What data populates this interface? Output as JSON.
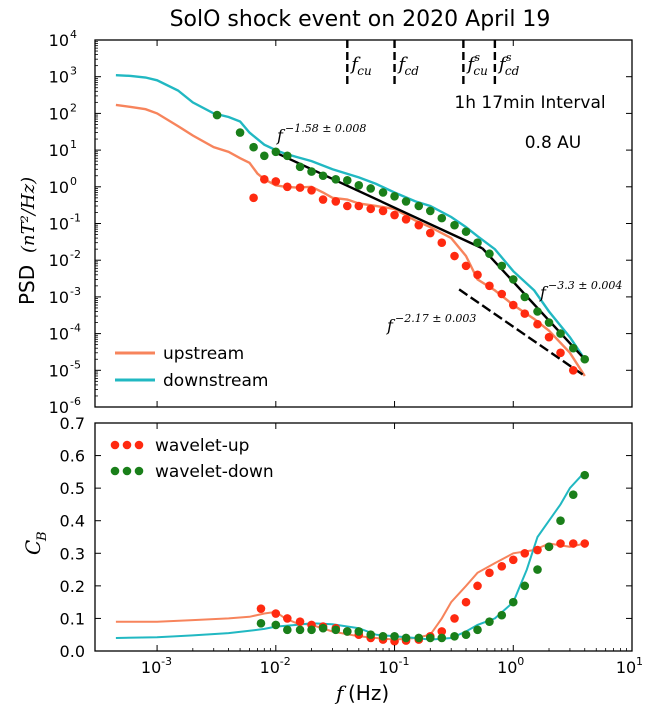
{
  "chart_data": [
    {
      "type": "line",
      "title": "SolO shock event on 2020 April 19",
      "ylabel_text": "PSD",
      "ylabel_math": "(nT²/Hz)",
      "x_scale": "log",
      "xlim": [
        0.0003,
        10
      ],
      "y_scale": "log",
      "ylim": [
        1e-06,
        10000.0
      ],
      "ytick_exponents": [
        "-6",
        "-5",
        "-4",
        "-3",
        "-2",
        "-1",
        "0",
        "1",
        "2",
        "3",
        "4"
      ],
      "annotations": {
        "interval": "1h 17min Interval",
        "distance": "0.8 AU",
        "freq_markers": [
          {
            "label": "fcu",
            "base": "f",
            "sub": "cu",
            "sup": "",
            "x": 0.04
          },
          {
            "label": "fcd",
            "base": "f",
            "sub": "cd",
            "sup": "",
            "x": 0.1
          },
          {
            "label": "fscu",
            "base": "f",
            "sub": "cu",
            "sup": "s",
            "x": 0.38
          },
          {
            "label": "fscd",
            "base": "f",
            "sub": "cd",
            "sup": "s",
            "x": 0.7
          }
        ],
        "fits": [
          {
            "label": "f^(-1.58±0.008)",
            "exp": "−1.58 ± 0.008",
            "x": [
              0.01,
              0.55
            ],
            "y": [
              8.5,
              0.021
            ]
          },
          {
            "label": "f^(-3.3±0.004)",
            "exp": "−3.3 ± 0.004",
            "x": [
              0.55,
              4.0
            ],
            "y": [
              0.021,
              2e-05
            ]
          },
          {
            "label": "f^(-2.17±0.003)",
            "exp": "−2.17 ± 0.003",
            "x": [
              0.35,
              4.0
            ],
            "y": [
              0.0016,
              7e-06
            ]
          }
        ]
      },
      "legend": [
        {
          "name": "upstream",
          "color": "#f7845c"
        },
        {
          "name": "downstream",
          "color": "#21b8c2"
        }
      ],
      "series": [
        {
          "name": "upstream",
          "color": "#f7845c",
          "x": [
            0.00045,
            0.0006,
            0.0008,
            0.001,
            0.0015,
            0.002,
            0.003,
            0.004,
            0.005,
            0.006,
            0.007,
            0.008,
            0.01,
            0.012,
            0.015,
            0.02,
            0.025,
            0.03,
            0.04,
            0.05,
            0.07,
            0.1,
            0.15,
            0.2,
            0.3,
            0.4,
            0.5,
            0.7,
            1.0,
            1.5,
            2,
            3,
            4
          ],
          "y": [
            170,
            150,
            130,
            100,
            45,
            25,
            12,
            9,
            6,
            4.5,
            2.3,
            1.6,
            1.1,
            1.0,
            0.95,
            1.0,
            0.7,
            0.5,
            0.45,
            0.35,
            0.3,
            0.25,
            0.12,
            0.08,
            0.04,
            0.013,
            0.003,
            0.0015,
            0.0006,
            0.00025,
            0.00012,
            3e-05,
            7e-06
          ]
        },
        {
          "name": "downstream",
          "color": "#21b8c2",
          "x": [
            0.00045,
            0.0006,
            0.0008,
            0.001,
            0.0015,
            0.002,
            0.003,
            0.004,
            0.005,
            0.006,
            0.007,
            0.008,
            0.01,
            0.012,
            0.015,
            0.02,
            0.03,
            0.05,
            0.07,
            0.1,
            0.15,
            0.2,
            0.3,
            0.4,
            0.5,
            0.7,
            1.0,
            1.5,
            2,
            3,
            4
          ],
          "y": [
            1100,
            1050,
            950,
            800,
            420,
            200,
            100,
            80,
            60,
            30,
            20,
            14,
            10,
            8,
            6.5,
            5,
            3,
            1.8,
            1.2,
            0.7,
            0.4,
            0.3,
            0.15,
            0.08,
            0.045,
            0.02,
            0.005,
            0.0015,
            0.0004,
            8e-05,
            2e-05
          ]
        }
      ],
      "markers": [
        {
          "name": "wavelet-up",
          "color": "#ff2a10",
          "x": [
            0.0065,
            0.008,
            0.01,
            0.0125,
            0.016,
            0.02,
            0.025,
            0.032,
            0.04,
            0.05,
            0.063,
            0.08,
            0.1,
            0.125,
            0.16,
            0.2,
            0.25,
            0.32,
            0.4,
            0.5,
            0.63,
            0.8,
            1.0,
            1.25,
            1.6,
            2,
            2.5,
            3.2
          ],
          "y": [
            0.5,
            1.6,
            1.4,
            1.0,
            0.95,
            0.8,
            0.45,
            0.4,
            0.3,
            0.3,
            0.25,
            0.22,
            0.17,
            0.13,
            0.09,
            0.055,
            0.03,
            0.013,
            0.007,
            0.004,
            0.002,
            0.0012,
            0.0006,
            0.00035,
            0.00018,
            8e-05,
            3e-05,
            1e-05
          ]
        },
        {
          "name": "wavelet-down",
          "color": "#1a7f1a",
          "x": [
            0.0032,
            0.005,
            0.0065,
            0.008,
            0.01,
            0.0125,
            0.016,
            0.02,
            0.025,
            0.032,
            0.04,
            0.05,
            0.063,
            0.08,
            0.1,
            0.125,
            0.16,
            0.2,
            0.25,
            0.32,
            0.4,
            0.5,
            0.63,
            0.8,
            1.0,
            1.25,
            1.6,
            2,
            2.5,
            3.2,
            4
          ],
          "y": [
            90,
            30,
            12,
            7,
            9,
            7,
            3.5,
            2.6,
            2.0,
            1.6,
            1.5,
            1.1,
            0.9,
            0.7,
            0.55,
            0.4,
            0.3,
            0.22,
            0.14,
            0.09,
            0.06,
            0.03,
            0.015,
            0.007,
            0.003,
            0.001,
            0.0004,
            0.0002,
            0.0001,
            4e-05,
            2e-05
          ]
        }
      ]
    },
    {
      "type": "line",
      "xlabel_math": "f",
      "xlabel_unit": "(Hz)",
      "ylabel_math": "C",
      "ylabel_sub": "B",
      "x_scale": "log",
      "xlim": [
        0.0003,
        10
      ],
      "ylim": [
        0.0,
        0.7
      ],
      "yticks": [
        "0.0",
        "0.1",
        "0.2",
        "0.3",
        "0.4",
        "0.5",
        "0.6",
        "0.7"
      ],
      "xtick_exponents": [
        "-3",
        "-2",
        "-1",
        "0",
        "1"
      ],
      "legend": [
        {
          "name": "wavelet-up",
          "color": "#ff2a10"
        },
        {
          "name": "wavelet-down",
          "color": "#1a7f1a"
        }
      ],
      "series": [
        {
          "name": "upstream",
          "color": "#f7845c",
          "x": [
            0.00045,
            0.001,
            0.002,
            0.004,
            0.006,
            0.008,
            0.01,
            0.012,
            0.015,
            0.02,
            0.03,
            0.05,
            0.07,
            0.1,
            0.15,
            0.2,
            0.25,
            0.3,
            0.4,
            0.5,
            0.7,
            1.0,
            1.5,
            2,
            3,
            4
          ],
          "y": [
            0.09,
            0.09,
            0.095,
            0.1,
            0.105,
            0.115,
            0.12,
            0.1,
            0.085,
            0.08,
            0.06,
            0.045,
            0.04,
            0.035,
            0.04,
            0.05,
            0.1,
            0.15,
            0.2,
            0.24,
            0.27,
            0.3,
            0.31,
            0.33,
            0.32,
            0.33
          ]
        },
        {
          "name": "downstream",
          "color": "#21b8c2",
          "x": [
            0.00045,
            0.001,
            0.002,
            0.004,
            0.006,
            0.008,
            0.01,
            0.015,
            0.02,
            0.03,
            0.05,
            0.07,
            0.1,
            0.15,
            0.2,
            0.3,
            0.4,
            0.5,
            0.7,
            1.0,
            1.3,
            1.6,
            2,
            2.5,
            3,
            4
          ],
          "y": [
            0.04,
            0.042,
            0.048,
            0.055,
            0.062,
            0.068,
            0.075,
            0.08,
            0.085,
            0.082,
            0.07,
            0.05,
            0.045,
            0.04,
            0.035,
            0.04,
            0.06,
            0.08,
            0.1,
            0.15,
            0.25,
            0.35,
            0.4,
            0.45,
            0.5,
            0.55
          ]
        }
      ],
      "markers": [
        {
          "name": "wavelet-up",
          "color": "#ff2a10",
          "x": [
            0.0075,
            0.01,
            0.0125,
            0.016,
            0.02,
            0.025,
            0.032,
            0.04,
            0.05,
            0.063,
            0.08,
            0.1,
            0.125,
            0.16,
            0.2,
            0.25,
            0.32,
            0.4,
            0.5,
            0.63,
            0.8,
            1.0,
            1.25,
            1.6,
            2,
            2.5,
            3.2,
            4
          ],
          "y": [
            0.13,
            0.115,
            0.1,
            0.09,
            0.08,
            0.075,
            0.07,
            0.06,
            0.05,
            0.04,
            0.035,
            0.03,
            0.032,
            0.035,
            0.045,
            0.06,
            0.1,
            0.15,
            0.2,
            0.24,
            0.26,
            0.28,
            0.3,
            0.31,
            0.32,
            0.33,
            0.33,
            0.33
          ]
        },
        {
          "name": "wavelet-down",
          "color": "#1a7f1a",
          "x": [
            0.0075,
            0.01,
            0.0125,
            0.016,
            0.02,
            0.025,
            0.032,
            0.04,
            0.05,
            0.063,
            0.08,
            0.1,
            0.125,
            0.16,
            0.2,
            0.25,
            0.32,
            0.4,
            0.5,
            0.63,
            0.8,
            1.0,
            1.25,
            1.6,
            2,
            2.5,
            3.2,
            4
          ],
          "y": [
            0.085,
            0.08,
            0.065,
            0.065,
            0.065,
            0.07,
            0.065,
            0.06,
            0.06,
            0.05,
            0.045,
            0.045,
            0.04,
            0.04,
            0.04,
            0.04,
            0.045,
            0.05,
            0.065,
            0.09,
            0.11,
            0.15,
            0.2,
            0.25,
            0.32,
            0.4,
            0.48,
            0.54
          ]
        }
      ]
    }
  ]
}
